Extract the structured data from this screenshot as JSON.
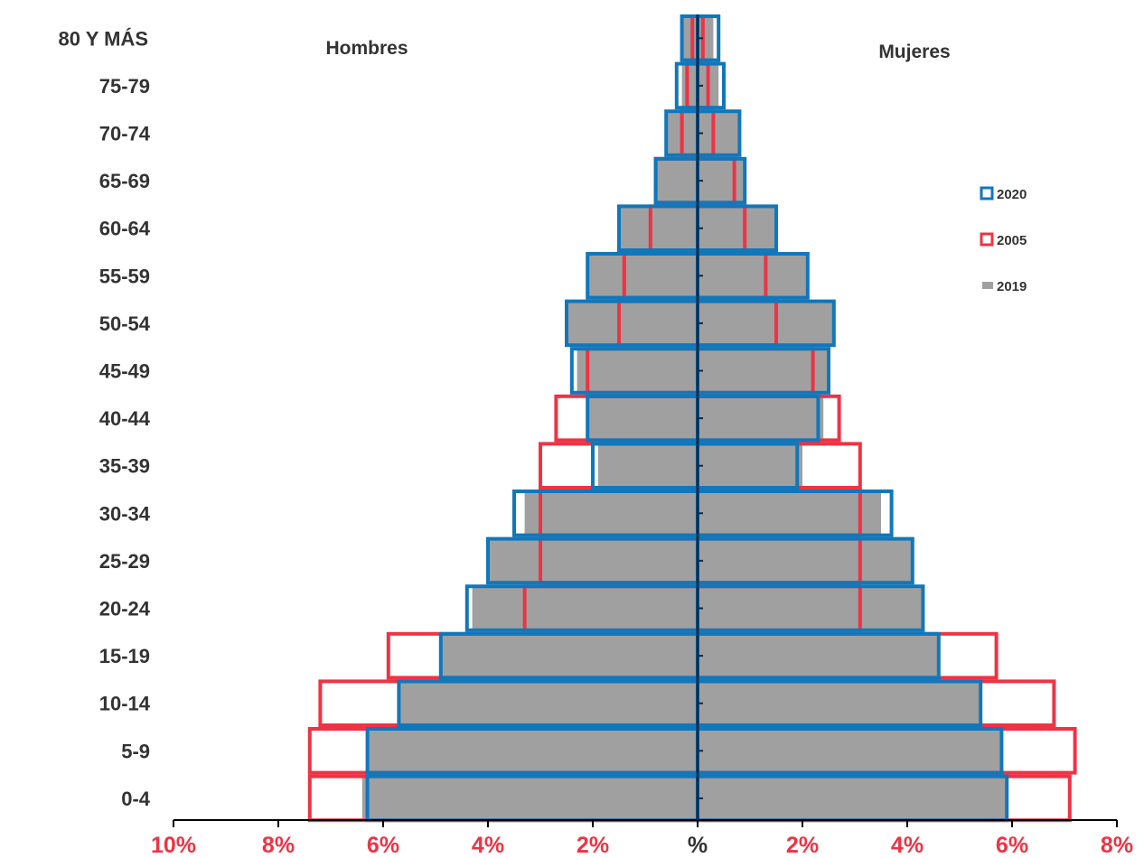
{
  "chart_data": {
    "type": "bar",
    "subtype": "population-pyramid",
    "categories": [
      "0-4",
      "5-9",
      "10-14",
      "15-19",
      "20-24",
      "25-29",
      "30-34",
      "35-39",
      "40-44",
      "45-49",
      "50-54",
      "55-59",
      "60-64",
      "65-69",
      "70-74",
      "75-79",
      "80 Y MÁS"
    ],
    "side_labels": {
      "left": "Hombres",
      "right": "Mujeres"
    },
    "x_ticks": [
      {
        "value": -10,
        "label": "10%"
      },
      {
        "value": -8,
        "label": "8%"
      },
      {
        "value": -6,
        "label": "6%"
      },
      {
        "value": -4,
        "label": "4%"
      },
      {
        "value": -2,
        "label": "2%"
      },
      {
        "value": 0,
        "label": "%"
      },
      {
        "value": 2,
        "label": "2%"
      },
      {
        "value": 4,
        "label": "4%"
      },
      {
        "value": 6,
        "label": "6%"
      },
      {
        "value": 8,
        "label": "8%"
      }
    ],
    "xlim": [
      -10,
      8
    ],
    "series": [
      {
        "name": "2019",
        "style": "filled",
        "color": "#a0a0a0",
        "hombres": [
          6.4,
          6.3,
          5.7,
          4.9,
          4.3,
          4.0,
          3.3,
          1.9,
          2.1,
          2.3,
          2.5,
          2.1,
          1.5,
          0.8,
          0.6,
          0.3,
          0.3
        ],
        "mujeres": [
          5.9,
          5.8,
          5.4,
          4.6,
          4.3,
          4.1,
          3.5,
          2.0,
          2.4,
          2.5,
          2.6,
          2.1,
          1.5,
          0.9,
          0.8,
          0.4,
          0.3
        ]
      },
      {
        "name": "2005",
        "style": "outline",
        "color": "#ee3344",
        "hombres": [
          7.4,
          7.4,
          7.2,
          5.9,
          3.3,
          3.0,
          3.0,
          3.0,
          2.7,
          2.1,
          1.5,
          1.4,
          0.9,
          0.8,
          0.3,
          0.2,
          0.1
        ],
        "mujeres": [
          7.1,
          7.2,
          6.8,
          5.7,
          3.1,
          3.1,
          3.1,
          3.1,
          2.7,
          2.2,
          1.5,
          1.3,
          0.9,
          0.7,
          0.3,
          0.2,
          0.1
        ]
      },
      {
        "name": "2020",
        "style": "outline",
        "color": "#1177bb",
        "hombres": [
          6.3,
          6.3,
          5.7,
          4.9,
          4.4,
          4.0,
          3.5,
          2.0,
          2.1,
          2.4,
          2.5,
          2.1,
          1.5,
          0.8,
          0.6,
          0.4,
          0.3
        ],
        "mujeres": [
          5.9,
          5.8,
          5.4,
          4.6,
          4.3,
          4.1,
          3.7,
          1.9,
          2.3,
          2.5,
          2.6,
          2.1,
          1.5,
          0.9,
          0.8,
          0.5,
          0.4
        ]
      }
    ],
    "legend": {
      "placement": "right",
      "order": [
        "2020",
        "2005",
        "2019"
      ]
    },
    "colors": {
      "category_label": "#333333",
      "tick_label": "#ee3344",
      "axis": "#000000",
      "center_axis": "#0a2a4a"
    }
  }
}
